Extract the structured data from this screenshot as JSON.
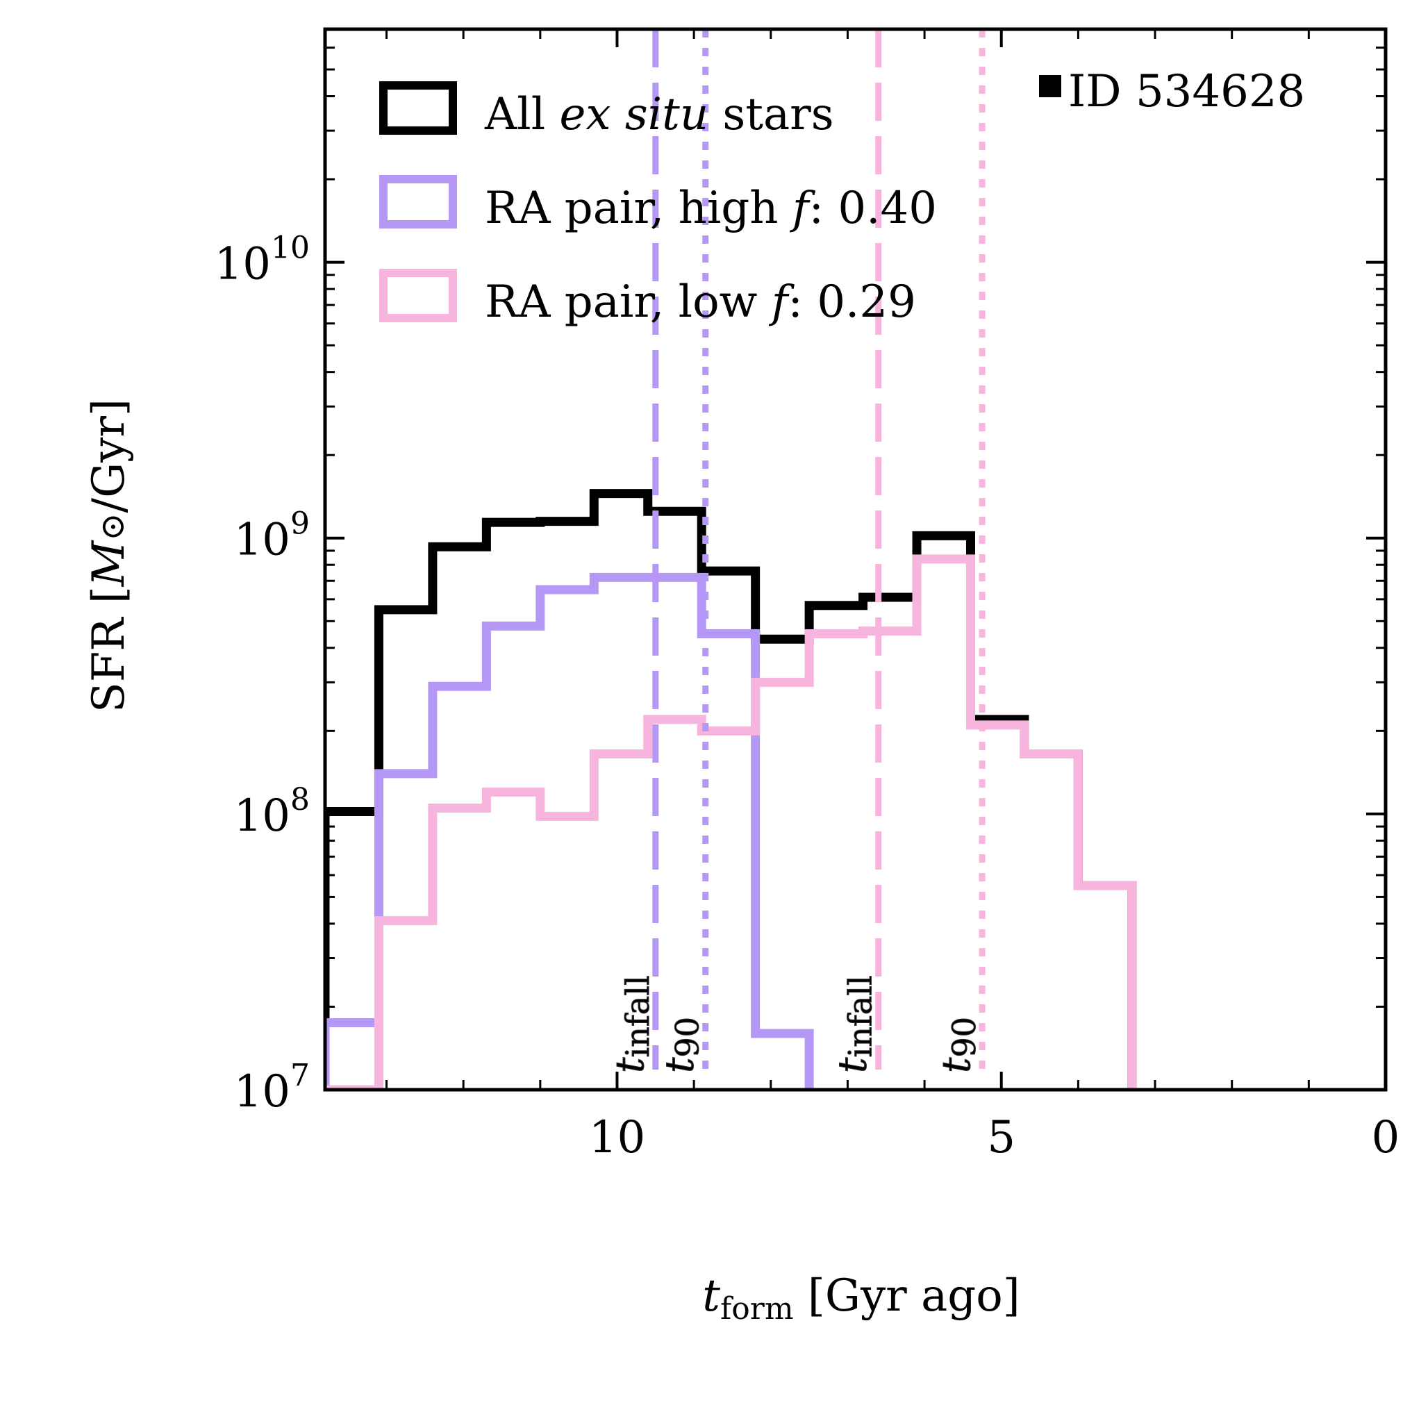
{
  "chart_data": {
    "type": "histogram-step",
    "id_label": "ID 534628",
    "xlabel": {
      "main": "t",
      "sub": "form",
      "rest": " [Gyr ago]"
    },
    "ylabel": {
      "prefix": "SFR [",
      "italic": "M",
      "sun": "⊙",
      "suffix": "/Gyr]"
    },
    "xlim": [
      13.8,
      0
    ],
    "ylim": [
      10000000.0,
      70000000000.0
    ],
    "yscale": "log",
    "x_ticks": [
      10,
      5,
      0
    ],
    "x_tick_labels": [
      "10",
      "5",
      "0"
    ],
    "x_minor_ticks": [
      13,
      12,
      11,
      9,
      8,
      7,
      6,
      4,
      3,
      2,
      1
    ],
    "y_ticks": [
      {
        "exp": "7",
        "value": 10000000.0
      },
      {
        "exp": "8",
        "value": 100000000.0
      },
      {
        "exp": "9",
        "value": 1000000000.0
      },
      {
        "exp": "10",
        "value": 10000000000.0
      }
    ],
    "y_tick_base": "10",
    "series": [
      {
        "name": "All ex situ stars",
        "color": "#000000",
        "edges": [
          13.8,
          13.1,
          12.4,
          11.7,
          11.0,
          10.3,
          9.6,
          8.9,
          8.2,
          7.5,
          6.8,
          6.1,
          5.4,
          4.7,
          4.0,
          3.3
        ],
        "values": [
          102000000.0,
          550000000.0,
          930000000.0,
          1140000000.0,
          1150000000.0,
          1450000000.0,
          1250000000.0,
          760000000.0,
          430000000.0,
          570000000.0,
          610000000.0,
          1020000000.0,
          220000000.0,
          165000000.0,
          55000000.0
        ]
      },
      {
        "name": "RA pair, high f: 0.40",
        "color": "#b598f5",
        "edges": [
          13.8,
          13.1,
          12.4,
          11.7,
          11.0,
          10.3,
          9.6,
          8.9,
          8.2,
          7.5
        ],
        "values": [
          17500000.0,
          140000000.0,
          290000000.0,
          480000000.0,
          650000000.0,
          720000000.0,
          720000000.0,
          450000000.0,
          16000000.0
        ]
      },
      {
        "name": "RA pair, low f: 0.29",
        "color": "#f7b4dc",
        "edges": [
          13.8,
          13.1,
          12.4,
          11.7,
          11.0,
          10.3,
          9.6,
          8.9,
          8.2,
          7.5,
          6.8,
          6.1,
          5.4,
          4.7,
          4.0,
          3.3
        ],
        "values": [
          10000000.0,
          41000000.0,
          105000000.0,
          120000000.0,
          98000000.0,
          165000000.0,
          220000000.0,
          200000000.0,
          300000000.0,
          450000000.0,
          460000000.0,
          840000000.0,
          210000000.0,
          165000000.0,
          55000000.0
        ]
      }
    ],
    "markers": [
      {
        "x": 9.5,
        "style": "dashed",
        "color": "#b598f5",
        "label_main": "t",
        "label_sub": "infall"
      },
      {
        "x": 8.85,
        "style": "dotted",
        "color": "#b598f5",
        "label_main": "t",
        "label_sub": "90"
      },
      {
        "x": 6.6,
        "style": "dashed",
        "color": "#f7b4dc",
        "label_main": "t",
        "label_sub": "infall"
      },
      {
        "x": 5.25,
        "style": "dotted",
        "color": "#f7b4dc",
        "label_main": "t",
        "label_sub": "90"
      }
    ],
    "legend": [
      {
        "prefix": "All ",
        "italic": "ex situ",
        "suffix": " stars",
        "color": "#000000"
      },
      {
        "prefix": "RA pair, high ",
        "italic": "f",
        "suffix": ": 0.40",
        "color": "#b598f5"
      },
      {
        "prefix": "RA pair, low ",
        "italic": "f",
        "suffix": ": 0.29",
        "color": "#f7b4dc"
      }
    ]
  }
}
